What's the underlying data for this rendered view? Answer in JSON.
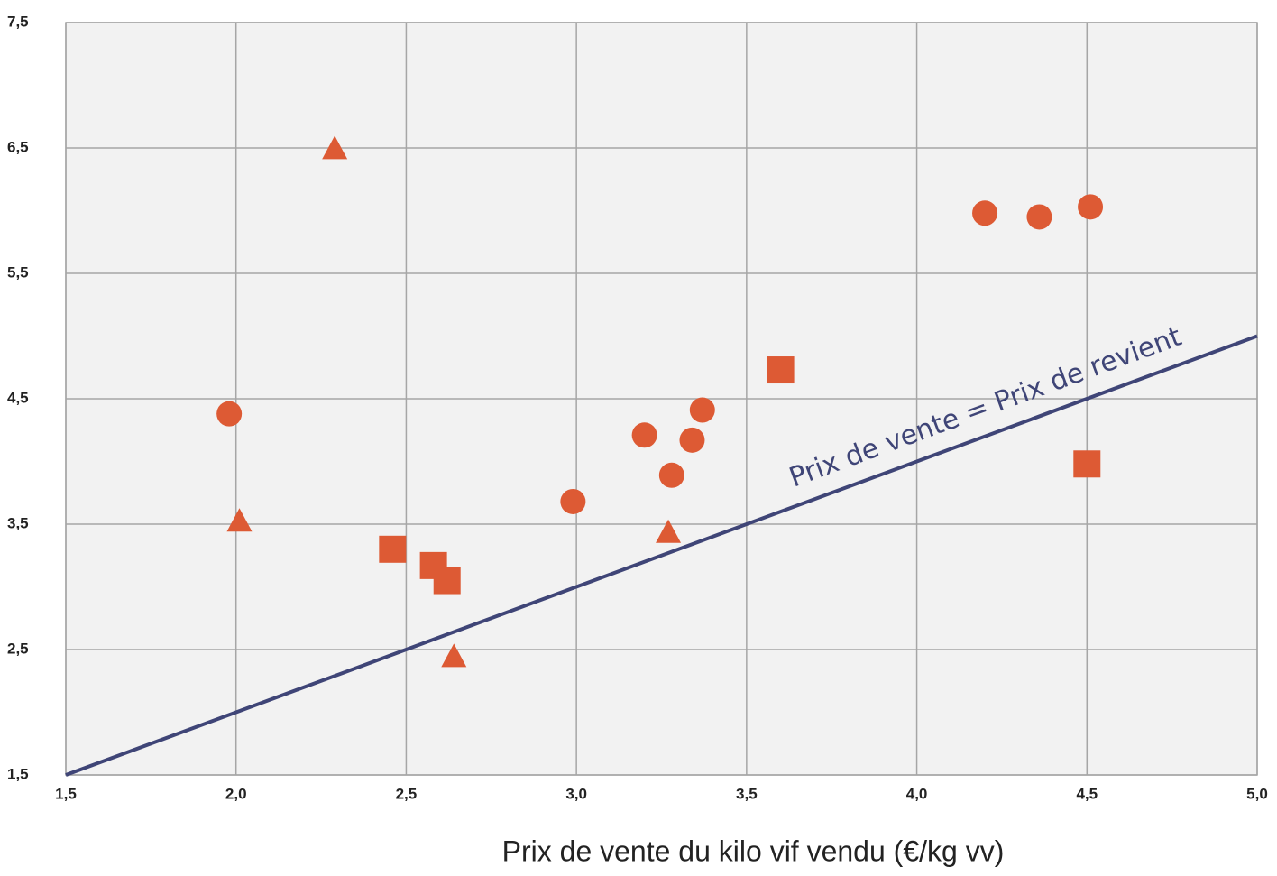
{
  "chart_data": {
    "type": "scatter",
    "x_label": "Prix de vente du kilo vif vendu (€/kg vv)",
    "xlim": [
      1.5,
      5.0
    ],
    "ylim": [
      1.5,
      7.5
    ],
    "xticks": [
      {
        "value": 1.5,
        "label": "1,5"
      },
      {
        "value": 2.0,
        "label": "2,0"
      },
      {
        "value": 2.5,
        "label": "2,5"
      },
      {
        "value": 3.0,
        "label": "3,0"
      },
      {
        "value": 3.5,
        "label": "3,5"
      },
      {
        "value": 4.0,
        "label": "4,0"
      },
      {
        "value": 4.5,
        "label": "4,5"
      },
      {
        "value": 5.0,
        "label": "5,0"
      }
    ],
    "yticks": [
      {
        "value": 1.5,
        "label": "1,5"
      },
      {
        "value": 2.5,
        "label": "2,5"
      },
      {
        "value": 3.5,
        "label": "3,5"
      },
      {
        "value": 4.5,
        "label": "4,5"
      },
      {
        "value": 5.5,
        "label": "5,5"
      },
      {
        "value": 6.5,
        "label": "6,5"
      },
      {
        "value": 7.5,
        "label": "7,5"
      }
    ],
    "grid": true,
    "series": [
      {
        "marker": "circle",
        "color": "#dd5a34",
        "x": [
          1.98,
          2.99,
          3.2,
          3.28,
          3.34,
          3.37,
          4.2,
          4.36,
          4.51
        ],
        "values": [
          4.38,
          3.68,
          4.21,
          3.89,
          4.17,
          4.41,
          5.98,
          5.95,
          6.03
        ]
      },
      {
        "marker": "square",
        "color": "#dd5a34",
        "x": [
          2.46,
          2.58,
          2.62,
          3.6,
          4.5
        ],
        "values": [
          3.3,
          3.17,
          3.05,
          4.73,
          3.98
        ]
      },
      {
        "marker": "triangle",
        "color": "#dd5a34",
        "x": [
          2.29,
          2.01,
          3.27,
          2.64
        ],
        "values": [
          6.49,
          3.52,
          3.43,
          2.44
        ]
      }
    ],
    "line": {
      "x": [
        1.5,
        5.0
      ],
      "y": [
        1.5,
        5.0
      ],
      "color": "#3f4577"
    },
    "annotation": "Prix de vente = Prix de revient"
  }
}
